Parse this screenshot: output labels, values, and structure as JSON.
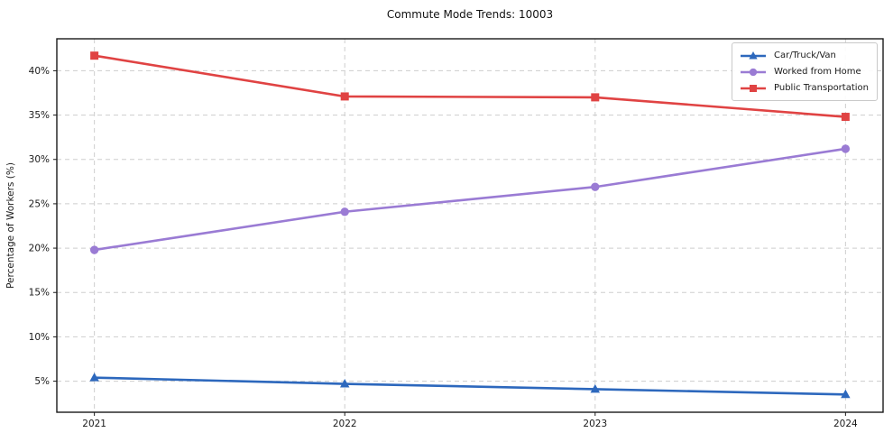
{
  "chart_data": {
    "type": "line",
    "title": "Commute Mode Trends: 10003",
    "xlabel": "",
    "ylabel": "Percentage of Workers (%)",
    "x": [
      2021,
      2022,
      2023,
      2024
    ],
    "x_tick_labels": [
      "2021",
      "2022",
      "2023",
      "2024"
    ],
    "series": [
      {
        "name": "Car/Truck/Van",
        "marker": "triangle",
        "color": "#2d68bd",
        "values": [
          5.4,
          4.7,
          4.1,
          3.5
        ]
      },
      {
        "name": "Worked from Home",
        "marker": "circle",
        "color": "#9a7bd4",
        "values": [
          19.8,
          24.1,
          26.9,
          31.2
        ]
      },
      {
        "name": "Public Transportation",
        "marker": "square",
        "color": "#e04343",
        "values": [
          41.7,
          37.1,
          37.0,
          34.8
        ]
      }
    ],
    "xlim": [
      2020.85,
      2024.15
    ],
    "ylim": [
      1.5,
      43.6
    ],
    "yticks": [
      5,
      10,
      15,
      20,
      25,
      30,
      35,
      40
    ],
    "ytick_suffix": "%",
    "grid": true,
    "grid_style": "dashed",
    "legend_position": "upper right",
    "colors": {
      "grid": "#cdcdcd",
      "spine": "#1a1a1a",
      "tick_label": "#1a1a1a",
      "background": "#ffffff"
    }
  }
}
